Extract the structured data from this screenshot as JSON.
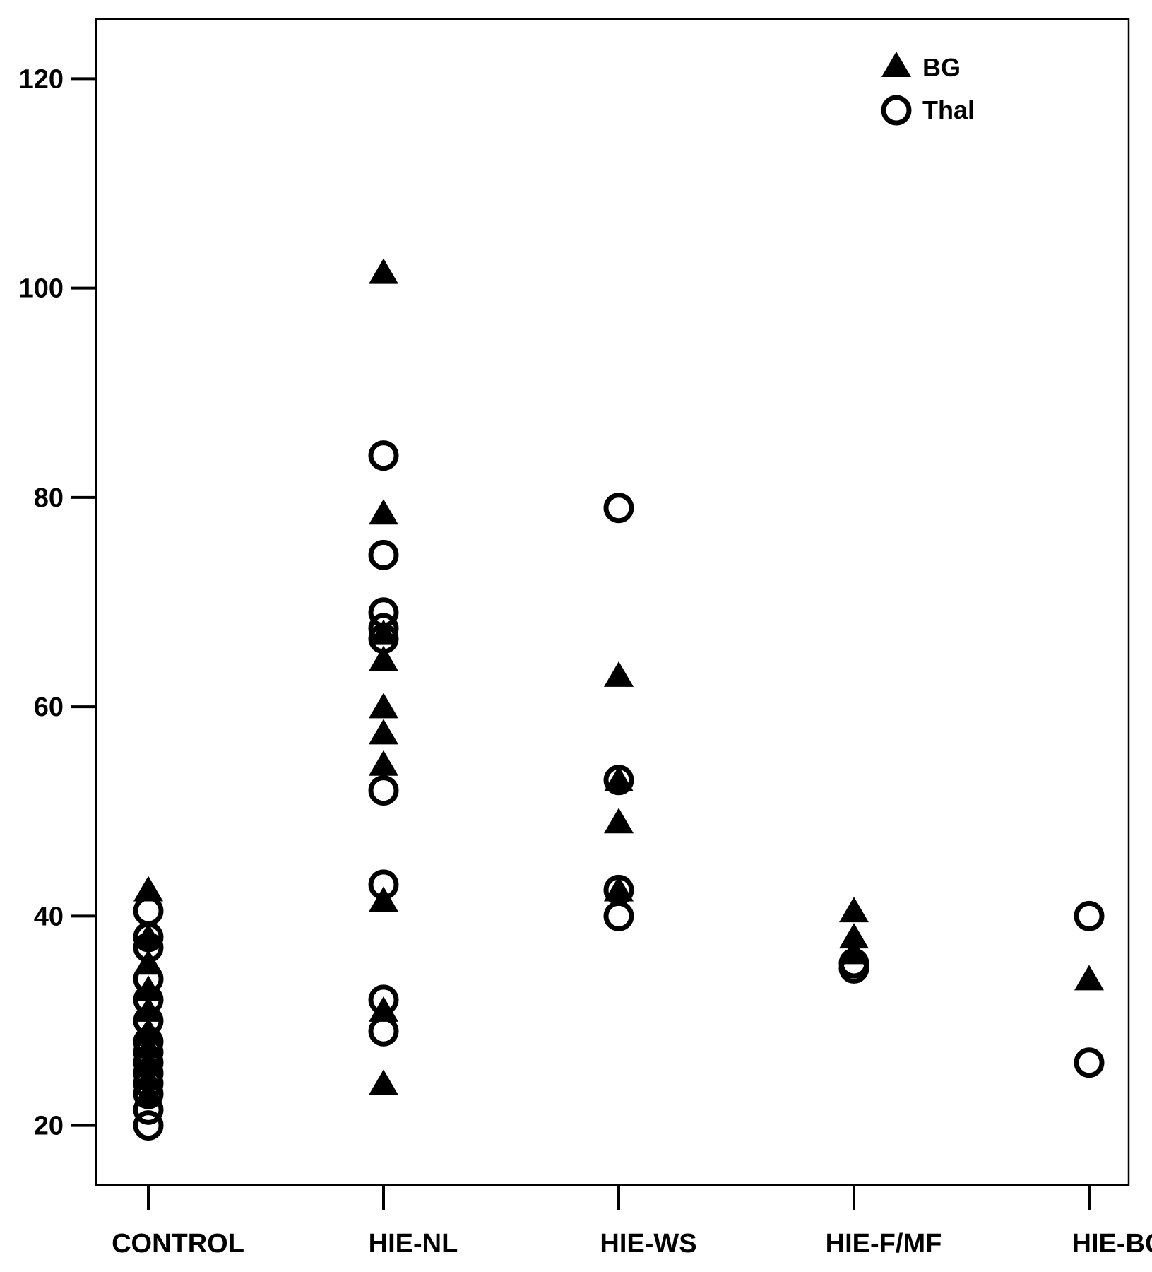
{
  "chart_data": {
    "type": "scatter",
    "title": "",
    "xlabel": "",
    "ylabel": "",
    "categories": [
      "CONTROL",
      "HIE-NL",
      "HIE-WS",
      "HIE-F/MF",
      "HIE-BG"
    ],
    "y_ticks": [
      20,
      40,
      60,
      80,
      100,
      120
    ],
    "ylim": [
      14.3,
      125.7
    ],
    "grid": false,
    "legend_position": "top-right",
    "colors": {
      "marker": "#000000",
      "background": "#ffffff"
    },
    "series": [
      {
        "name": "BG",
        "marker": "filled-triangle",
        "points": [
          {
            "category": "CONTROL",
            "y": 42.5
          },
          {
            "category": "CONTROL",
            "y": 38.0
          },
          {
            "category": "CONTROL",
            "y": 35.5
          },
          {
            "category": "CONTROL",
            "y": 33.0
          },
          {
            "category": "CONTROL",
            "y": 31.0
          },
          {
            "category": "CONTROL",
            "y": 29.0
          },
          {
            "category": "CONTROL",
            "y": 27.5
          },
          {
            "category": "CONTROL",
            "y": 26.0
          },
          {
            "category": "CONTROL",
            "y": 24.5
          },
          {
            "category": "CONTROL",
            "y": 23.0
          },
          {
            "category": "HIE-NL",
            "y": 101.5
          },
          {
            "category": "HIE-NL",
            "y": 78.5
          },
          {
            "category": "HIE-NL",
            "y": 67.0
          },
          {
            "category": "HIE-NL",
            "y": 64.5
          },
          {
            "category": "HIE-NL",
            "y": 60.0
          },
          {
            "category": "HIE-NL",
            "y": 57.5
          },
          {
            "category": "HIE-NL",
            "y": 54.5
          },
          {
            "category": "HIE-NL",
            "y": 41.5
          },
          {
            "category": "HIE-NL",
            "y": 31.0
          },
          {
            "category": "HIE-NL",
            "y": 24.0
          },
          {
            "category": "HIE-WS",
            "y": 63.0
          },
          {
            "category": "HIE-WS",
            "y": 53.0
          },
          {
            "category": "HIE-WS",
            "y": 49.0
          },
          {
            "category": "HIE-WS",
            "y": 42.5
          },
          {
            "category": "HIE-F/MF",
            "y": 40.5
          },
          {
            "category": "HIE-F/MF",
            "y": 38.0
          },
          {
            "category": "HIE-F/MF",
            "y": 36.5
          },
          {
            "category": "HIE-BG",
            "y": 34.0
          }
        ]
      },
      {
        "name": "Thal",
        "marker": "open-circle",
        "points": [
          {
            "category": "CONTROL",
            "y": 40.5
          },
          {
            "category": "CONTROL",
            "y": 38.0
          },
          {
            "category": "CONTROL",
            "y": 37.0
          },
          {
            "category": "CONTROL",
            "y": 34.0
          },
          {
            "category": "CONTROL",
            "y": 32.0
          },
          {
            "category": "CONTROL",
            "y": 30.0
          },
          {
            "category": "CONTROL",
            "y": 28.0
          },
          {
            "category": "CONTROL",
            "y": 27.0
          },
          {
            "category": "CONTROL",
            "y": 26.0
          },
          {
            "category": "CONTROL",
            "y": 25.0
          },
          {
            "category": "CONTROL",
            "y": 24.0
          },
          {
            "category": "CONTROL",
            "y": 23.0
          },
          {
            "category": "CONTROL",
            "y": 21.5
          },
          {
            "category": "CONTROL",
            "y": 20.0
          },
          {
            "category": "HIE-NL",
            "y": 84.0
          },
          {
            "category": "HIE-NL",
            "y": 74.5
          },
          {
            "category": "HIE-NL",
            "y": 69.0
          },
          {
            "category": "HIE-NL",
            "y": 67.5
          },
          {
            "category": "HIE-NL",
            "y": 66.5
          },
          {
            "category": "HIE-NL",
            "y": 52.0
          },
          {
            "category": "HIE-NL",
            "y": 43.0
          },
          {
            "category": "HIE-NL",
            "y": 32.0
          },
          {
            "category": "HIE-NL",
            "y": 29.0
          },
          {
            "category": "HIE-WS",
            "y": 79.0
          },
          {
            "category": "HIE-WS",
            "y": 53.0
          },
          {
            "category": "HIE-WS",
            "y": 42.5
          },
          {
            "category": "HIE-WS",
            "y": 40.0
          },
          {
            "category": "HIE-F/MF",
            "y": 35.5
          },
          {
            "category": "HIE-F/MF",
            "y": 35.0
          },
          {
            "category": "HIE-BG",
            "y": 40.0
          },
          {
            "category": "HIE-BG",
            "y": 26.0
          }
        ]
      }
    ]
  }
}
